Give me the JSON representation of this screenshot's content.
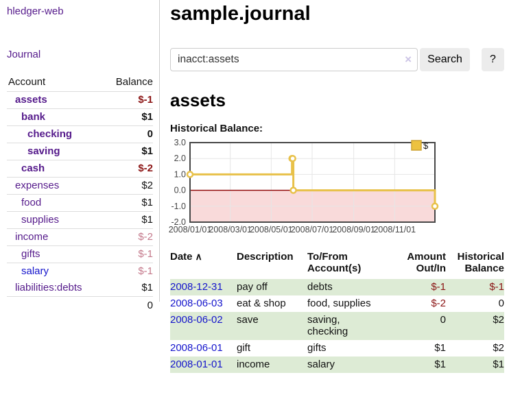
{
  "sidebar": {
    "app_title": "hledger-web",
    "journal_label": "Journal",
    "accounts_table": {
      "headers": {
        "account": "Account",
        "balance": "Balance"
      },
      "rows": [
        {
          "name": "assets",
          "indent": 0,
          "bold": true,
          "balance": "$-1",
          "balance_style": "neg-strong"
        },
        {
          "name": "bank",
          "indent": 1,
          "bold": true,
          "balance": "$1",
          "balance_style": "pos"
        },
        {
          "name": "checking",
          "indent": 2,
          "bold": true,
          "balance": "0",
          "balance_style": "pos"
        },
        {
          "name": "saving",
          "indent": 2,
          "bold": true,
          "balance": "$1",
          "balance_style": "pos"
        },
        {
          "name": "cash",
          "indent": 1,
          "bold": true,
          "balance": "$-2",
          "balance_style": "neg-strong"
        },
        {
          "name": "expenses",
          "indent": 0,
          "bold": false,
          "balance": "$2",
          "balance_style": "pos"
        },
        {
          "name": "food",
          "indent": 1,
          "bold": false,
          "balance": "$1",
          "balance_style": "pos"
        },
        {
          "name": "supplies",
          "indent": 1,
          "bold": false,
          "balance": "$1",
          "balance_style": "pos"
        },
        {
          "name": "income",
          "indent": 0,
          "bold": false,
          "balance": "$-2",
          "balance_style": "neg-soft"
        },
        {
          "name": "gifts",
          "indent": 1,
          "bold": false,
          "balance": "$-1",
          "balance_style": "neg-soft"
        },
        {
          "name": "salary",
          "indent": 1,
          "bold": false,
          "link_style": "blue",
          "balance": "$-1",
          "balance_style": "neg-soft"
        },
        {
          "name": "liabilities:debts",
          "indent": 0,
          "bold": false,
          "balance": "$1",
          "balance_style": "pos"
        }
      ],
      "total": "0"
    }
  },
  "main": {
    "title": "sample.journal",
    "search": {
      "value": "inacct:assets",
      "clear_icon": "×",
      "search_label": "Search",
      "help_label": "?"
    },
    "account_heading": "assets",
    "chart_label": "Historical Balance:"
  },
  "chart_data": {
    "type": "line",
    "step": true,
    "title": "Historical Balance",
    "series": [
      {
        "name": "$",
        "color": "#e8c149",
        "points": [
          {
            "date": "2008-01-01",
            "value": 1
          },
          {
            "date": "2008-06-01",
            "value": 2
          },
          {
            "date": "2008-06-02",
            "value": 2
          },
          {
            "date": "2008-06-03",
            "value": 0
          },
          {
            "date": "2008-12-31",
            "value": -1
          }
        ]
      }
    ],
    "x_range": [
      "2008-01-01",
      "2008-12-31"
    ],
    "x_tick_dates": [
      "2008-01-01",
      "2008-03-01",
      "2008-05-01",
      "2008-07-01",
      "2008-09-01",
      "2008-11-01"
    ],
    "x_tick_labels": [
      "2008/01/01",
      "2008/03/01",
      "2008/05/01",
      "2008/07/01",
      "2008/09/01",
      "2008/11/01"
    ],
    "y_ticks": [
      3,
      2,
      1,
      0,
      -1,
      -2
    ],
    "y_tick_labels": [
      "3.0",
      "2.0",
      "1.0",
      "0.0",
      "-1.0",
      "-2.0"
    ],
    "ylim": [
      -2,
      3
    ],
    "legend": {
      "label": "$",
      "position": "top-right",
      "swatch_color": "#edc240"
    },
    "grid": true,
    "negative_region_fill": "#f9dada",
    "zero_line_color": "#8b0000"
  },
  "register": {
    "headers": {
      "date": "Date",
      "sort_icon": "∧",
      "description": "Description",
      "account": "To/From Account(s)",
      "amount": "Amount Out/In",
      "balance": "Historical Balance"
    },
    "rows": [
      {
        "date": "2008-12-31",
        "description": "pay off",
        "account": "debts",
        "amount": "$-1",
        "amount_neg": true,
        "balance": "$-1",
        "balance_neg": true,
        "shaded": true
      },
      {
        "date": "2008-06-03",
        "description": "eat & shop",
        "account": "food, supplies",
        "amount": "$-2",
        "amount_neg": true,
        "balance": "0",
        "balance_neg": false,
        "shaded": false
      },
      {
        "date": "2008-06-02",
        "description": "save",
        "account": "saving, checking",
        "amount": "0",
        "amount_neg": false,
        "balance": "$2",
        "balance_neg": false,
        "shaded": true
      },
      {
        "date": "2008-06-01",
        "description": "gift",
        "account": "gifts",
        "amount": "$1",
        "amount_neg": false,
        "balance": "$2",
        "balance_neg": false,
        "shaded": false
      },
      {
        "date": "2008-01-01",
        "description": "income",
        "account": "salary",
        "amount": "$1",
        "amount_neg": false,
        "balance": "$1",
        "balance_neg": false,
        "shaded": true
      }
    ]
  },
  "colors": {
    "link_purple": "#551a8b",
    "link_blue": "#1515cc",
    "negative_strong": "#8b1414",
    "negative_soft": "#c4798b",
    "row_shade_green": "#ddebd5",
    "chart_series_yellow": "#e8c149",
    "chart_legend_fill": "#edc240",
    "chart_negative_fill": "#f9dada",
    "chart_zero_line": "#8b0000",
    "chart_border": "#474747",
    "gridline": "#e6e6e6"
  }
}
